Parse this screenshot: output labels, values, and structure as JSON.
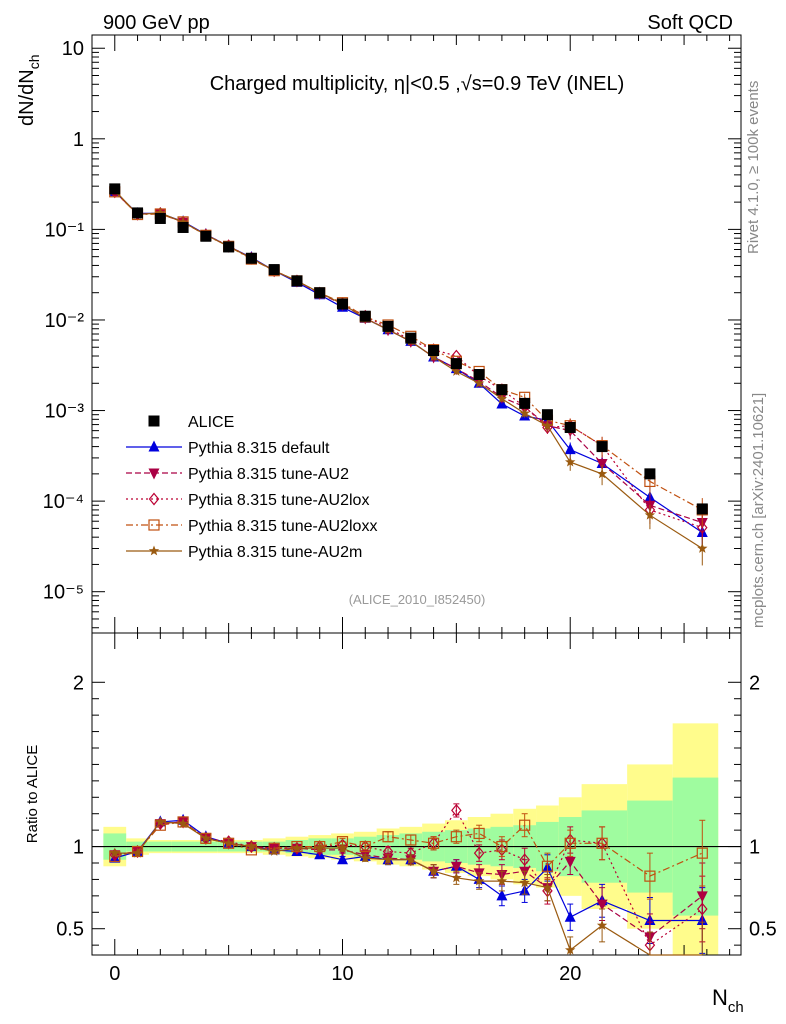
{
  "header": {
    "left": "900 GeV pp",
    "right": "Soft QCD"
  },
  "side_labels": {
    "rivet": "Rivet 4.1.0, ≥ 100k events",
    "mcplots": "mcplots.cern.ch [arXiv:2401.10621]"
  },
  "title": "Charged multiplicity, η|<0.5 ,√s=0.9 TeV (INEL)",
  "analysis_tag": "(ALICE_2010_I852450)",
  "colors": {
    "ALICE": "#000000",
    "default": "#0000dd",
    "AU2": "#aa0044",
    "AU2lox": "#bb0033",
    "AU2loxx": "#c05010",
    "AU2m": "#9a5a10",
    "band_inner": "#9ffc9f",
    "band_outer": "#fffc8c"
  },
  "chart_data": [
    {
      "type": "scatter",
      "panel": "main",
      "yscale": "log",
      "ylabel": "dN/dN_ch",
      "xlabel": "",
      "xlim": [
        -1,
        27.5
      ],
      "ylim": [
        3.5e-06,
        14
      ],
      "yticks": [
        "10⁻⁵",
        "10⁻⁴",
        "10⁻³",
        "10⁻²",
        "10⁻¹",
        "1",
        "10"
      ],
      "legend_position": "middle-left",
      "series": [
        {
          "key": "ALICE",
          "name": "ALICE",
          "x": [
            0,
            1,
            2,
            3,
            4,
            5,
            6,
            7,
            8,
            9,
            10,
            11,
            12,
            13,
            14,
            15,
            16,
            17,
            18,
            19,
            20,
            21.4,
            23.5,
            25.8
          ],
          "y": [
            0.28,
            0.152,
            0.132,
            0.105,
            0.084,
            0.064,
            0.048,
            0.036,
            0.027,
            0.02,
            0.015,
            0.011,
            0.0085,
            0.0063,
            0.0046,
            0.0033,
            0.0025,
            0.0017,
            0.0012,
            0.0009,
            0.00065,
            0.0004,
            0.0002,
            8.2e-05
          ]
        },
        {
          "key": "default",
          "name": "Pythia 8.315 default",
          "x": [
            0,
            1,
            2,
            3,
            4,
            5,
            6,
            7,
            8,
            9,
            10,
            11,
            12,
            13,
            14,
            15,
            16,
            17,
            18,
            19,
            20,
            21.4,
            23.5,
            25.8
          ],
          "y": [
            0.26,
            0.15,
            0.15,
            0.122,
            0.088,
            0.065,
            0.049,
            0.035,
            0.026,
            0.019,
            0.0138,
            0.0104,
            0.0078,
            0.0058,
            0.0039,
            0.0029,
            0.002,
            0.00118,
            0.00087,
            0.00078,
            0.00037,
            0.00026,
            0.00011,
            4.5e-05
          ]
        },
        {
          "key": "AU2",
          "name": "Pythia 8.315 tune-AU2",
          "x": [
            0,
            1,
            2,
            3,
            4,
            5,
            6,
            7,
            8,
            9,
            10,
            11,
            12,
            13,
            14,
            15,
            16,
            17,
            18,
            19,
            20,
            21.4,
            23.5,
            25.8
          ],
          "y": [
            0.26,
            0.148,
            0.149,
            0.12,
            0.087,
            0.065,
            0.048,
            0.035,
            0.027,
            0.0197,
            0.0148,
            0.0105,
            0.0078,
            0.0058,
            0.0039,
            0.0029,
            0.0021,
            0.0014,
            0.0011,
            0.00068,
            0.0006,
            0.00026,
            9e-05,
            5.8e-05
          ]
        },
        {
          "key": "AU2lox",
          "name": "Pythia 8.315 tune-AU2lox",
          "x": [
            0,
            1,
            2,
            3,
            4,
            5,
            6,
            7,
            8,
            9,
            10,
            11,
            12,
            13,
            14,
            15,
            16,
            17,
            18,
            19,
            20,
            21.4,
            23.5,
            25.8
          ],
          "y": [
            0.26,
            0.147,
            0.15,
            0.12,
            0.087,
            0.066,
            0.048,
            0.035,
            0.027,
            0.0198,
            0.0152,
            0.011,
            0.0082,
            0.006,
            0.0047,
            0.004,
            0.0024,
            0.0017,
            0.0011,
            0.00065,
            0.00068,
            0.00041,
            8e-05,
            5.1e-05
          ]
        },
        {
          "key": "AU2loxx",
          "name": "Pythia 8.315 tune-AU2loxx",
          "x": [
            0,
            1,
            2,
            3,
            4,
            5,
            6,
            7,
            8,
            9,
            10,
            11,
            12,
            13,
            14,
            15,
            16,
            17,
            18,
            19,
            20,
            21.4,
            23.5,
            25.8
          ],
          "y": [
            0.26,
            0.146,
            0.148,
            0.121,
            0.086,
            0.065,
            0.047,
            0.035,
            0.027,
            0.0199,
            0.0155,
            0.0108,
            0.0088,
            0.0066,
            0.0047,
            0.0035,
            0.0027,
            0.0017,
            0.0014,
            0.00078,
            0.00068,
            0.00041,
            0.000165,
            8e-05
          ]
        },
        {
          "key": "AU2m",
          "name": "Pythia 8.315 tune-AU2m",
          "x": [
            0,
            1,
            2,
            3,
            4,
            5,
            6,
            7,
            8,
            9,
            10,
            11,
            12,
            13,
            14,
            15,
            16,
            17,
            18,
            19,
            20,
            21.4,
            23.5,
            25.8
          ],
          "y": [
            0.27,
            0.146,
            0.152,
            0.12,
            0.087,
            0.065,
            0.048,
            0.035,
            0.027,
            0.02,
            0.015,
            0.0104,
            0.0078,
            0.0058,
            0.0039,
            0.0027,
            0.002,
            0.00135,
            0.00093,
            0.00068,
            0.00027,
            0.0002,
            7e-05,
            3e-05
          ]
        }
      ]
    },
    {
      "type": "scatter",
      "panel": "ratio",
      "yscale": "linear",
      "ylabel": "Ratio to ALICE",
      "xlabel": "N_ch",
      "xlim": [
        -1,
        27.5
      ],
      "ylim": [
        0.34,
        2.3
      ],
      "yticks": [
        0.5,
        1,
        2
      ],
      "xticks": [
        0,
        10,
        20
      ],
      "reference_line": 1,
      "band_bins": [
        [
          -0.5,
          0.5
        ],
        [
          0.5,
          1.5
        ],
        [
          1.5,
          2.5
        ],
        [
          2.5,
          3.5
        ],
        [
          3.5,
          4.5
        ],
        [
          4.5,
          5.5
        ],
        [
          5.5,
          6.5
        ],
        [
          6.5,
          7.5
        ],
        [
          7.5,
          8.5
        ],
        [
          8.5,
          9.5
        ],
        [
          9.5,
          10.5
        ],
        [
          10.5,
          11.5
        ],
        [
          11.5,
          12.5
        ],
        [
          12.5,
          13.5
        ],
        [
          13.5,
          14.5
        ],
        [
          14.5,
          15.5
        ],
        [
          15.5,
          16.5
        ],
        [
          16.5,
          17.5
        ],
        [
          17.5,
          18.5
        ],
        [
          18.5,
          19.5
        ],
        [
          19.5,
          20.5
        ],
        [
          20.5,
          22.5
        ],
        [
          22.5,
          24.5
        ],
        [
          24.5,
          26.5
        ]
      ],
      "band_outer": [
        0.12,
        0.05,
        0.04,
        0.04,
        0.04,
        0.04,
        0.04,
        0.05,
        0.06,
        0.07,
        0.08,
        0.09,
        0.11,
        0.12,
        0.14,
        0.16,
        0.18,
        0.2,
        0.23,
        0.25,
        0.3,
        0.38,
        0.5,
        0.75
      ],
      "band_inner": [
        0.08,
        0.03,
        0.03,
        0.03,
        0.03,
        0.03,
        0.03,
        0.03,
        0.04,
        0.05,
        0.05,
        0.06,
        0.07,
        0.08,
        0.09,
        0.1,
        0.11,
        0.12,
        0.13,
        0.15,
        0.18,
        0.22,
        0.28,
        0.42
      ],
      "series": [
        {
          "key": "default",
          "name": "Pythia 8.315 default",
          "y": [
            0.93,
            0.97,
            1.15,
            1.16,
            1.06,
            1.02,
            1.0,
            0.98,
            0.97,
            0.95,
            0.92,
            0.94,
            0.92,
            0.92,
            0.85,
            0.88,
            0.8,
            0.7,
            0.73,
            0.87,
            0.57,
            0.67,
            0.55,
            0.55
          ],
          "err": [
            0.01,
            0.01,
            0.01,
            0.01,
            0.01,
            0.01,
            0.01,
            0.01,
            0.015,
            0.02,
            0.02,
            0.02,
            0.03,
            0.03,
            0.04,
            0.04,
            0.05,
            0.06,
            0.07,
            0.08,
            0.08,
            0.1,
            0.14,
            0.2
          ]
        },
        {
          "key": "AU2",
          "name": "Pythia 8.315 tune-AU2",
          "y": [
            0.95,
            0.97,
            1.14,
            1.15,
            1.05,
            1.02,
            1.0,
            0.99,
            0.99,
            0.98,
            0.98,
            0.95,
            0.93,
            0.92,
            0.85,
            0.88,
            0.84,
            0.83,
            0.85,
            0.75,
            0.91,
            0.65,
            0.45,
            0.7
          ],
          "err": [
            0.01,
            0.01,
            0.01,
            0.01,
            0.01,
            0.01,
            0.01,
            0.01,
            0.015,
            0.02,
            0.02,
            0.02,
            0.03,
            0.03,
            0.04,
            0.04,
            0.05,
            0.06,
            0.07,
            0.08,
            0.08,
            0.1,
            0.14,
            0.2
          ]
        },
        {
          "key": "AU2lox",
          "name": "Pythia 8.315 tune-AU2lox",
          "y": [
            0.95,
            0.97,
            1.14,
            1.15,
            1.05,
            1.03,
            1.0,
            0.99,
            0.99,
            1.0,
            1.01,
            1.0,
            0.97,
            0.96,
            1.02,
            1.22,
            0.96,
            0.98,
            0.92,
            0.73,
            1.04,
            1.02,
            0.4,
            0.62
          ],
          "err": [
            0.01,
            0.01,
            0.01,
            0.01,
            0.01,
            0.01,
            0.01,
            0.01,
            0.015,
            0.02,
            0.02,
            0.02,
            0.03,
            0.03,
            0.04,
            0.04,
            0.05,
            0.06,
            0.07,
            0.08,
            0.08,
            0.1,
            0.14,
            0.2
          ]
        },
        {
          "key": "AU2loxx",
          "name": "Pythia 8.315 tune-AU2loxx",
          "y": [
            0.94,
            0.97,
            1.13,
            1.15,
            1.05,
            1.02,
            0.98,
            0.99,
            1.0,
            1.0,
            1.03,
            1.0,
            1.06,
            1.04,
            1.02,
            1.06,
            1.08,
            1.0,
            1.13,
            0.88,
            1.02,
            1.02,
            0.82,
            0.96
          ],
          "err": [
            0.01,
            0.01,
            0.01,
            0.01,
            0.01,
            0.01,
            0.01,
            0.01,
            0.015,
            0.02,
            0.02,
            0.02,
            0.03,
            0.03,
            0.04,
            0.04,
            0.05,
            0.06,
            0.07,
            0.08,
            0.08,
            0.1,
            0.14,
            0.2
          ]
        },
        {
          "key": "AU2m",
          "name": "Pythia 8.315 tune-AU2m",
          "y": [
            0.96,
            0.96,
            1.15,
            1.14,
            1.05,
            1.02,
            1.0,
            0.97,
            0.99,
            0.99,
            0.99,
            0.93,
            0.92,
            0.92,
            0.85,
            0.81,
            0.79,
            0.79,
            0.78,
            0.75,
            0.37,
            0.52,
            0.34,
            0.34
          ],
          "err": [
            0.01,
            0.01,
            0.01,
            0.01,
            0.01,
            0.01,
            0.01,
            0.01,
            0.015,
            0.02,
            0.02,
            0.02,
            0.03,
            0.03,
            0.04,
            0.04,
            0.05,
            0.06,
            0.07,
            0.08,
            0.08,
            0.1,
            0.14,
            0.2
          ]
        }
      ]
    }
  ]
}
